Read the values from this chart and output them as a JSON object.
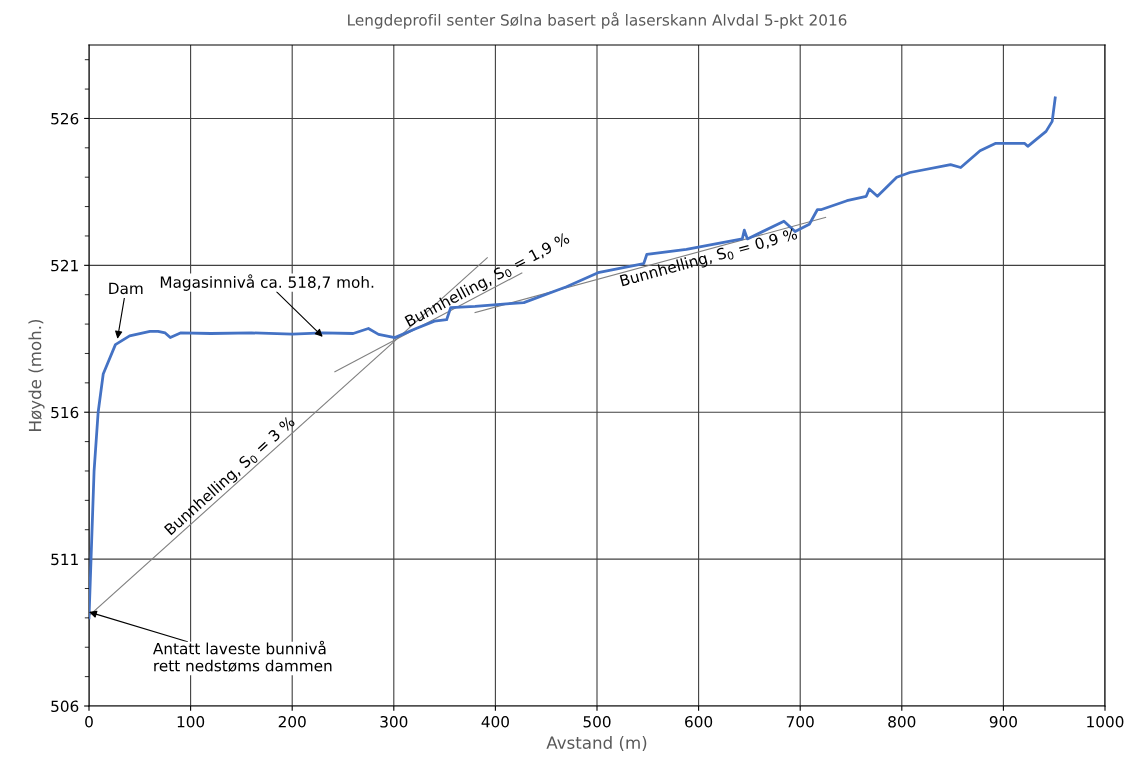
{
  "chart_data": {
    "type": "line",
    "title": "Lengdeprofil senter Sølna basert på laserskann Alvdal 5-pkt 2016",
    "xlabel": "Avstand (m)",
    "ylabel": "Høyde (moh.)",
    "xlim": [
      0,
      1000
    ],
    "xticks": [
      0,
      100,
      200,
      300,
      400,
      500,
      600,
      700,
      800,
      900,
      1000
    ],
    "ylim": [
      506,
      528.5
    ],
    "yticks": [
      506,
      511,
      516,
      521,
      526
    ],
    "grid": true,
    "legend": false,
    "marker": "none",
    "line_style": "solid",
    "series": [
      {
        "color": "#4472c4",
        "x": [
          0,
          2,
          5,
          9,
          14,
          26,
          40,
          60,
          68,
          75,
          80,
          90,
          120,
          160,
          200,
          230,
          260,
          275,
          285,
          301,
          322,
          340,
          352,
          356,
          380,
          414,
          428,
          470,
          501,
          546,
          549,
          588,
          643,
          645,
          648,
          684,
          695,
          709,
          717,
          721,
          746,
          765,
          768,
          776,
          795,
          808,
          848,
          858,
          877,
          892,
          921,
          924,
          942,
          948,
          951
        ],
        "values": [
          509.0,
          511,
          514,
          516,
          517.3,
          518.3,
          518.6,
          518.75,
          518.75,
          518.7,
          518.54,
          518.7,
          518.68,
          518.7,
          518.66,
          518.7,
          518.68,
          518.85,
          518.65,
          518.54,
          518.85,
          519.1,
          519.15,
          519.56,
          519.6,
          519.7,
          519.73,
          520.27,
          520.75,
          521.06,
          521.37,
          521.54,
          521.9,
          522.2,
          521.9,
          522.5,
          522.15,
          522.4,
          522.9,
          522.9,
          523.2,
          523.35,
          523.6,
          523.35,
          524.0,
          524.16,
          524.43,
          524.33,
          524.9,
          525.15,
          525.15,
          525.05,
          525.56,
          525.9,
          526.7
        ]
      },
      {
        "color": "#808080",
        "x": [
          0,
          392
        ],
        "values": [
          509.07,
          521.26
        ]
      },
      {
        "color": "#808080",
        "x": [
          242,
          426
        ],
        "values": [
          517.38,
          520.74
        ]
      },
      {
        "color": "#808080",
        "x": [
          380,
          725
        ],
        "values": [
          519.39,
          522.63
        ]
      }
    ],
    "annotations": [
      {
        "text": "Dam",
        "x": 28,
        "y": 518.5
      },
      {
        "text": "Magasinnivå ca. 518,7 moh.",
        "x": 230,
        "y": 518.57
      },
      {
        "text": "Antatt laveste bunnivå\nrett nedstøms dammen",
        "x": 0,
        "y": 509.2
      },
      "Bunnhelling, S$_{0}$ = 3 %",
      "Bunnhelling, S$_{0}$ = 1,9 %",
      "Bunnhelling, S$_{0}$ = 0,9 %"
    ]
  }
}
